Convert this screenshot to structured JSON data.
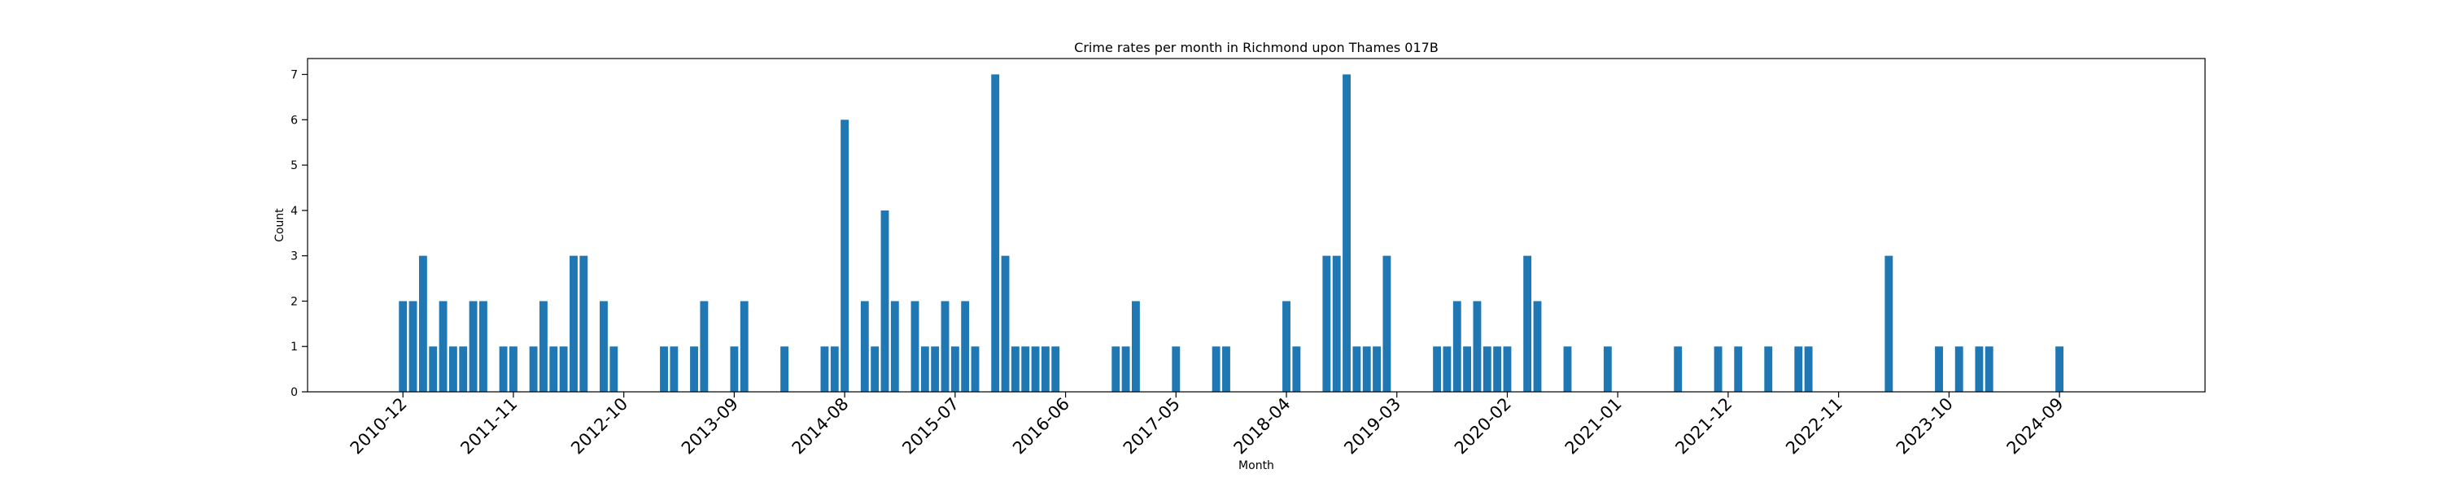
{
  "chart_data": {
    "type": "bar",
    "title": "Crime rates per month in Richmond upon Thames 017B",
    "xlabel": "Month",
    "ylabel": "Count",
    "ylim": [
      0,
      7.35
    ],
    "xlim": [
      -9.5,
      179.5
    ],
    "y_ticks": [
      0,
      1,
      2,
      3,
      4,
      5,
      6,
      7
    ],
    "x_ticks": [
      {
        "label": "2010-12",
        "index": 0
      },
      {
        "label": "2011-11",
        "index": 11
      },
      {
        "label": "2012-10",
        "index": 22
      },
      {
        "label": "2013-09",
        "index": 33
      },
      {
        "label": "2014-08",
        "index": 44
      },
      {
        "label": "2015-07",
        "index": 55
      },
      {
        "label": "2016-06",
        "index": 66
      },
      {
        "label": "2017-05",
        "index": 77
      },
      {
        "label": "2018-04",
        "index": 88
      },
      {
        "label": "2019-03",
        "index": 99
      },
      {
        "label": "2020-02",
        "index": 110
      },
      {
        "label": "2021-01",
        "index": 121
      },
      {
        "label": "2021-12",
        "index": 132
      },
      {
        "label": "2022-11",
        "index": 143
      },
      {
        "label": "2023-10",
        "index": 154
      },
      {
        "label": "2024-09",
        "index": 165
      }
    ],
    "bar_color": "#1f77b4",
    "bars": [
      {
        "index": 0,
        "value": 2
      },
      {
        "index": 1,
        "value": 2
      },
      {
        "index": 2,
        "value": 3
      },
      {
        "index": 3,
        "value": 1
      },
      {
        "index": 4,
        "value": 2
      },
      {
        "index": 5,
        "value": 1
      },
      {
        "index": 6,
        "value": 1
      },
      {
        "index": 7,
        "value": 2
      },
      {
        "index": 8,
        "value": 2
      },
      {
        "index": 10,
        "value": 1
      },
      {
        "index": 11,
        "value": 1
      },
      {
        "index": 13,
        "value": 1
      },
      {
        "index": 14,
        "value": 2
      },
      {
        "index": 15,
        "value": 1
      },
      {
        "index": 16,
        "value": 1
      },
      {
        "index": 17,
        "value": 3
      },
      {
        "index": 18,
        "value": 3
      },
      {
        "index": 20,
        "value": 2
      },
      {
        "index": 21,
        "value": 1
      },
      {
        "index": 26,
        "value": 1
      },
      {
        "index": 27,
        "value": 1
      },
      {
        "index": 29,
        "value": 1
      },
      {
        "index": 30,
        "value": 2
      },
      {
        "index": 33,
        "value": 1
      },
      {
        "index": 34,
        "value": 2
      },
      {
        "index": 38,
        "value": 1
      },
      {
        "index": 42,
        "value": 1
      },
      {
        "index": 43,
        "value": 1
      },
      {
        "index": 44,
        "value": 6
      },
      {
        "index": 46,
        "value": 2
      },
      {
        "index": 47,
        "value": 1
      },
      {
        "index": 48,
        "value": 4
      },
      {
        "index": 49,
        "value": 2
      },
      {
        "index": 51,
        "value": 2
      },
      {
        "index": 52,
        "value": 1
      },
      {
        "index": 53,
        "value": 1
      },
      {
        "index": 54,
        "value": 2
      },
      {
        "index": 55,
        "value": 1
      },
      {
        "index": 56,
        "value": 2
      },
      {
        "index": 57,
        "value": 1
      },
      {
        "index": 59,
        "value": 7
      },
      {
        "index": 60,
        "value": 3
      },
      {
        "index": 61,
        "value": 1
      },
      {
        "index": 62,
        "value": 1
      },
      {
        "index": 63,
        "value": 1
      },
      {
        "index": 64,
        "value": 1
      },
      {
        "index": 65,
        "value": 1
      },
      {
        "index": 71,
        "value": 1
      },
      {
        "index": 72,
        "value": 1
      },
      {
        "index": 73,
        "value": 2
      },
      {
        "index": 77,
        "value": 1
      },
      {
        "index": 81,
        "value": 1
      },
      {
        "index": 82,
        "value": 1
      },
      {
        "index": 88,
        "value": 2
      },
      {
        "index": 89,
        "value": 1
      },
      {
        "index": 92,
        "value": 3
      },
      {
        "index": 93,
        "value": 3
      },
      {
        "index": 94,
        "value": 7
      },
      {
        "index": 95,
        "value": 1
      },
      {
        "index": 96,
        "value": 1
      },
      {
        "index": 97,
        "value": 1
      },
      {
        "index": 98,
        "value": 3
      },
      {
        "index": 103,
        "value": 1
      },
      {
        "index": 104,
        "value": 1
      },
      {
        "index": 105,
        "value": 2
      },
      {
        "index": 106,
        "value": 1
      },
      {
        "index": 107,
        "value": 2
      },
      {
        "index": 108,
        "value": 1
      },
      {
        "index": 109,
        "value": 1
      },
      {
        "index": 110,
        "value": 1
      },
      {
        "index": 112,
        "value": 3
      },
      {
        "index": 113,
        "value": 2
      },
      {
        "index": 116,
        "value": 1
      },
      {
        "index": 120,
        "value": 1
      },
      {
        "index": 127,
        "value": 1
      },
      {
        "index": 131,
        "value": 1
      },
      {
        "index": 133,
        "value": 1
      },
      {
        "index": 136,
        "value": 1
      },
      {
        "index": 139,
        "value": 1
      },
      {
        "index": 140,
        "value": 1
      },
      {
        "index": 148,
        "value": 3
      },
      {
        "index": 153,
        "value": 1
      },
      {
        "index": 155,
        "value": 1
      },
      {
        "index": 157,
        "value": 1
      },
      {
        "index": 158,
        "value": 1
      },
      {
        "index": 165,
        "value": 1
      }
    ]
  }
}
